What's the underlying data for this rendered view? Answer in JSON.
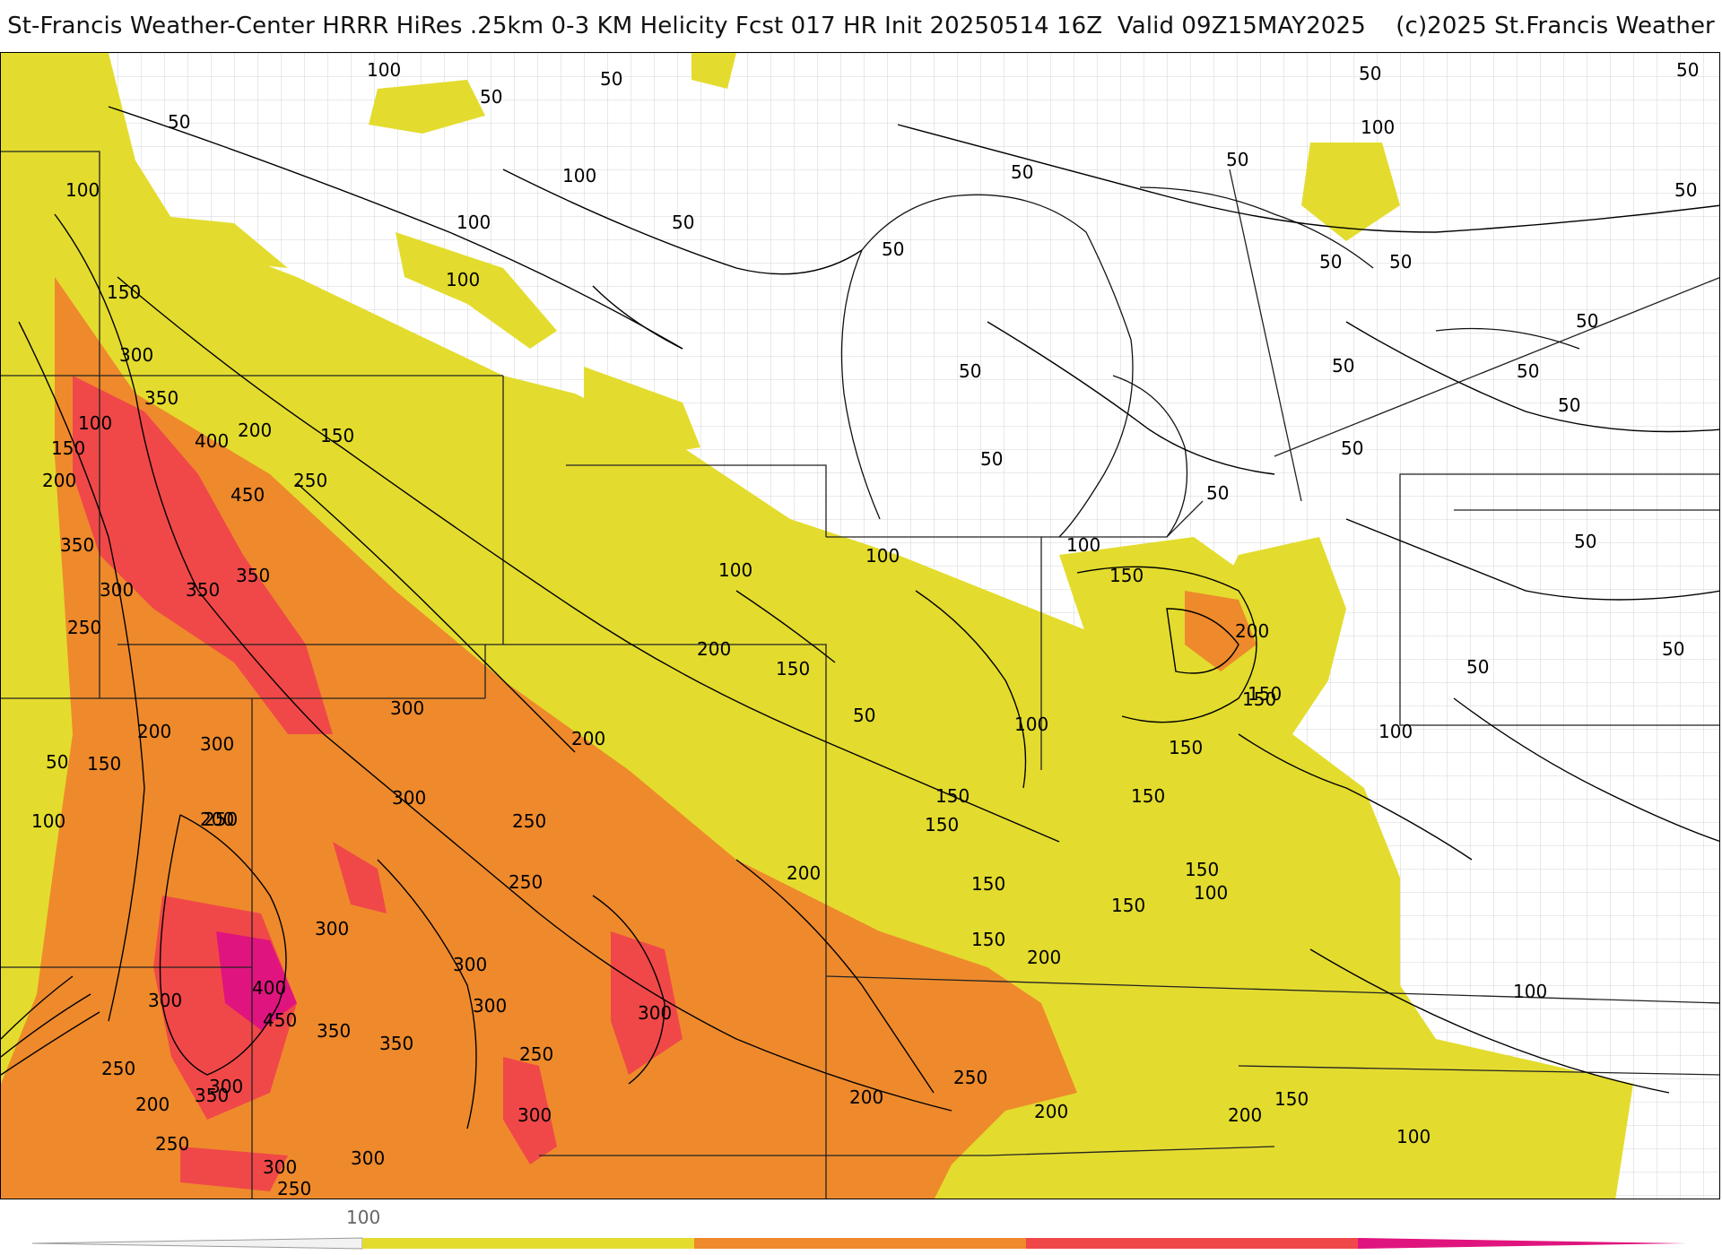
{
  "header": {
    "title": "St-Francis Weather-Center HRRR HiRes .25km 0-3 KM Helicity Fcst 017 HR Init 20250514 16Z  Valid 09Z15MAY2025    (c)2025 St.Francis Weather"
  },
  "map": {
    "field": "0-3 KM Helicity",
    "color_bands": [
      {
        "min": 100,
        "max": 200,
        "color": "#e3dc2e"
      },
      {
        "min": 200,
        "max": 300,
        "color": "#ee8a2c"
      },
      {
        "min": 300,
        "max": 400,
        "color": "#f04848"
      },
      {
        "min": 400,
        "max": 500,
        "color": "#e0147e"
      }
    ],
    "contour_labels": [
      "100",
      "50",
      "50",
      "50",
      "50",
      "50",
      "100",
      "50",
      "100",
      "50",
      "50",
      "100",
      "50",
      "100",
      "100",
      "150",
      "300",
      "350",
      "100",
      "150",
      "200",
      "400",
      "200",
      "150",
      "450",
      "250",
      "350",
      "300",
      "350",
      "350",
      "250",
      "200",
      "100",
      "300",
      "200",
      "150",
      "100",
      "50",
      "150",
      "200",
      "300",
      "50",
      "300",
      "250",
      "250",
      "100",
      "200",
      "150",
      "200",
      "150",
      "300",
      "300",
      "200",
      "150",
      "300",
      "400",
      "450",
      "350",
      "250",
      "300",
      "300",
      "350",
      "250",
      "200",
      "250",
      "300",
      "300",
      "250",
      "200",
      "350",
      "250",
      "300",
      "200",
      "300",
      "250",
      "150",
      "100",
      "150",
      "150",
      "150",
      "100",
      "150",
      "150",
      "200",
      "150",
      "150",
      "100",
      "200",
      "100",
      "150",
      "50",
      "50",
      "50",
      "100",
      "50",
      "50",
      "50",
      "50",
      "50",
      "50",
      "50",
      "50",
      "50",
      "50",
      "50",
      "100"
    ]
  },
  "colorbar": {
    "tick_label": "100",
    "segments": [
      "#e3dc2e",
      "#ee8a2c",
      "#f04848",
      "#e0147e"
    ]
  }
}
